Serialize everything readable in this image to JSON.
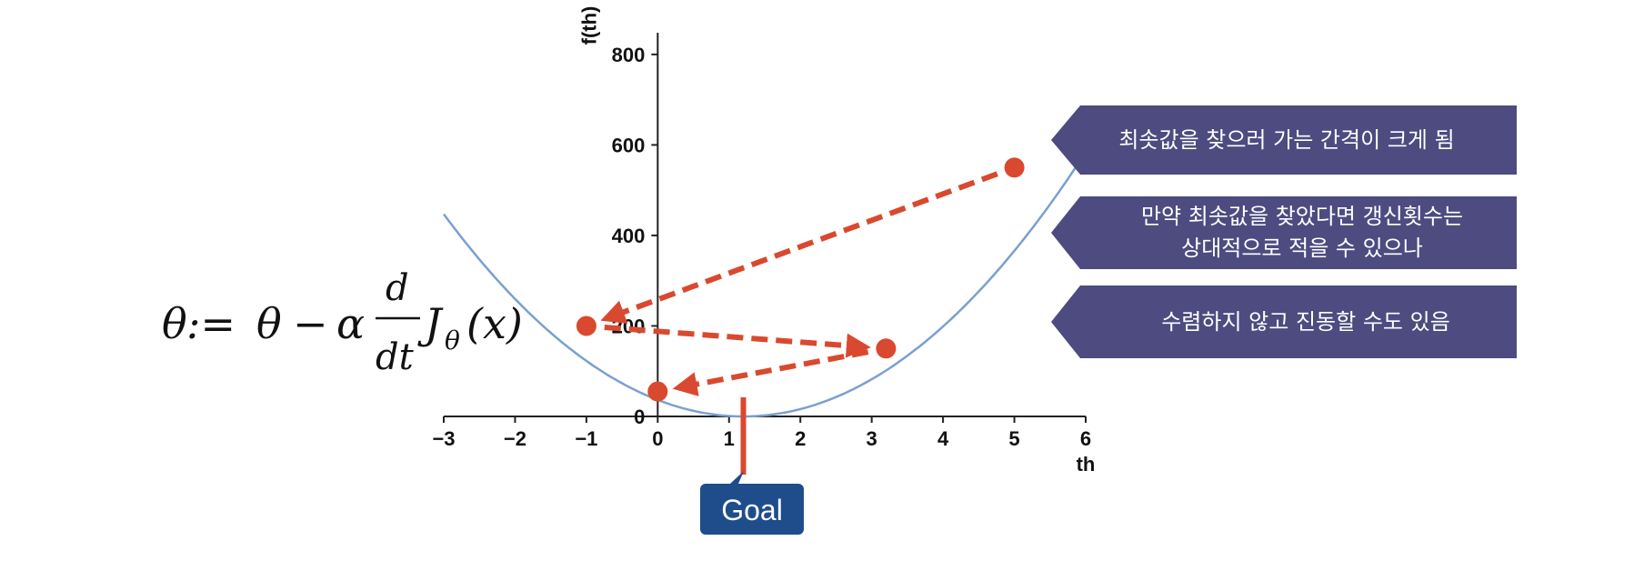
{
  "formula": {
    "theta": "θ",
    "assign": ":=",
    "theta2": "θ",
    "minus": "−",
    "alpha": "α",
    "numerator": "d",
    "denominator": "dt",
    "func": "J",
    "sub": "θ",
    "arg": "(x)"
  },
  "chart_data": {
    "type": "line",
    "xlabel": "th",
    "ylabel": "f(th)",
    "xlim": [
      -3,
      6
    ],
    "ylim": [
      0,
      860
    ],
    "x_ticks": [
      "−3",
      "−2",
      "−1",
      "0",
      "1",
      "2",
      "3",
      "4",
      "5",
      "6"
    ],
    "y_ticks": [
      "0",
      "200",
      "400",
      "600",
      "800"
    ],
    "curve": {
      "function": "parabola",
      "vertex_x": 1.2,
      "vertex_y": 0,
      "coefficient": 25.35
    },
    "points": [
      {
        "x": 5.0,
        "y": 550
      },
      {
        "x": -1.0,
        "y": 200
      },
      {
        "x": 3.2,
        "y": 150
      },
      {
        "x": 0.0,
        "y": 55
      }
    ],
    "arrows": [
      {
        "from": 0,
        "to": 1
      },
      {
        "from": 1,
        "to": 2
      },
      {
        "from": 2,
        "to": 3
      }
    ],
    "goal_x": 1.2,
    "grid": false
  },
  "goal": {
    "label": "Goal"
  },
  "callouts": [
    {
      "lines": [
        "최솟값을 찾으러 가는 간격이 크게 됨"
      ]
    },
    {
      "lines": [
        "만약 최솟값을 찾았다면 갱신횟수는",
        "상대적으로 적을 수 있으나"
      ]
    },
    {
      "lines": [
        "수렴하지 않고 진동할 수도 있음"
      ]
    }
  ],
  "colors": {
    "curve": "#7b9fd0",
    "point": "#d9492f",
    "arrow": "#d9492f",
    "callout_bg": "#4d4b80",
    "goal_bg": "#1f4d8c",
    "axis": "#222222"
  }
}
